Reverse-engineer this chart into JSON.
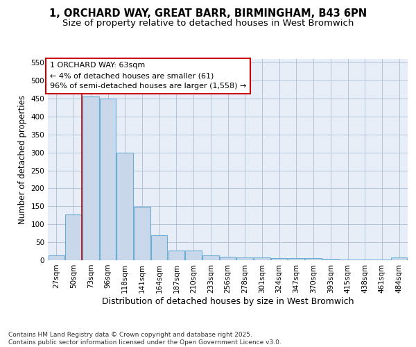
{
  "title": "1, ORCHARD WAY, GREAT BARR, BIRMINGHAM, B43 6PN",
  "subtitle": "Size of property relative to detached houses in West Bromwich",
  "xlabel": "Distribution of detached houses by size in West Bromwich",
  "ylabel": "Number of detached properties",
  "categories": [
    "27sqm",
    "50sqm",
    "73sqm",
    "96sqm",
    "118sqm",
    "141sqm",
    "164sqm",
    "187sqm",
    "210sqm",
    "233sqm",
    "256sqm",
    "278sqm",
    "301sqm",
    "324sqm",
    "347sqm",
    "370sqm",
    "393sqm",
    "415sqm",
    "438sqm",
    "461sqm",
    "484sqm"
  ],
  "values": [
    13,
    127,
    455,
    450,
    300,
    148,
    70,
    27,
    27,
    13,
    9,
    7,
    7,
    5,
    5,
    5,
    4,
    2,
    2,
    2,
    7
  ],
  "bar_color": "#c8d8ea",
  "bar_edge_color": "#6aaed6",
  "grid_color": "#aabdd4",
  "background_color": "#e8eef8",
  "annotation_text": "1 ORCHARD WAY: 63sqm\n← 4% of detached houses are smaller (61)\n96% of semi-detached houses are larger (1,558) →",
  "annotation_box_color": "#ffffff",
  "annotation_box_edge": "#cc0000",
  "vline_color": "#cc0000",
  "vline_pos": 1.5,
  "ylim": [
    0,
    560
  ],
  "yticks": [
    0,
    50,
    100,
    150,
    200,
    250,
    300,
    350,
    400,
    450,
    500,
    550
  ],
  "footer": "Contains HM Land Registry data © Crown copyright and database right 2025.\nContains public sector information licensed under the Open Government Licence v3.0.",
  "title_fontsize": 10.5,
  "subtitle_fontsize": 9.5,
  "xlabel_fontsize": 9,
  "ylabel_fontsize": 8.5,
  "tick_fontsize": 7.5,
  "ann_fontsize": 8,
  "footer_fontsize": 6.5
}
